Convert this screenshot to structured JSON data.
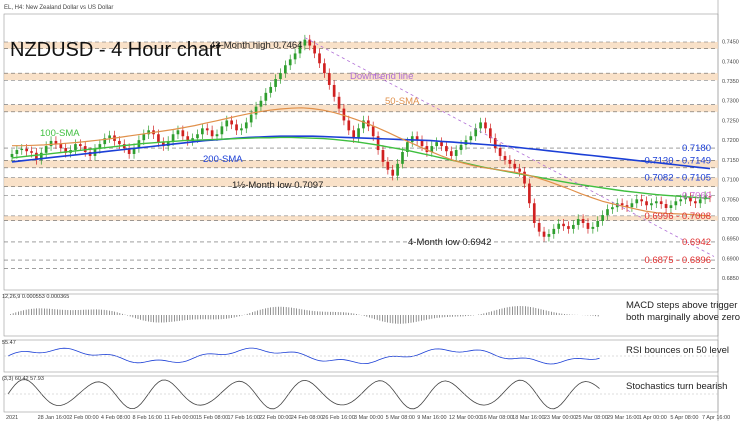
{
  "header": {
    "symbol_line": "EL, H4: New Zealand Dollar vs US Dollar"
  },
  "chart_data": [
    {
      "type": "line",
      "title": "NZDUSD - 4 Hour chart",
      "ylim": [
        0.682,
        0.752
      ],
      "x_labels": [
        "2021",
        "28 Jan 16:00",
        "2 Feb 00:00",
        "4 Feb 08:00",
        "8 Feb 16:00",
        "11 Feb 00:00",
        "15 Feb 08:00",
        "17 Feb 16:00",
        "22 Feb 00:00",
        "24 Feb 08:00",
        "26 Feb 16:00",
        "3 Mar 00:00",
        "5 Mar 08:00",
        "9 Mar 16:00",
        "12 Mar 00:00",
        "16 Mar 08:00",
        "18 Mar 16:00",
        "23 Mar 00:00",
        "25 Mar 08:00",
        "29 Mar 16:00",
        "1 Apr 00:00",
        "5 Apr 08:00",
        "7 Apr 16:00"
      ],
      "close": [
        0.7165,
        0.7175,
        0.7178,
        0.7172,
        0.7168,
        0.715,
        0.7168,
        0.7185,
        0.7198,
        0.719,
        0.718,
        0.7168,
        0.7175,
        0.719,
        0.7185,
        0.717,
        0.716,
        0.7178,
        0.719,
        0.7205,
        0.7212,
        0.7198,
        0.719,
        0.718,
        0.7165,
        0.718,
        0.72,
        0.7215,
        0.7225,
        0.7215,
        0.7195,
        0.7185,
        0.7198,
        0.7215,
        0.7225,
        0.721,
        0.7198,
        0.7205,
        0.7215,
        0.723,
        0.7225,
        0.721,
        0.7215,
        0.7235,
        0.725,
        0.724,
        0.7225,
        0.723,
        0.7245,
        0.7265,
        0.7285,
        0.73,
        0.732,
        0.7335,
        0.7355,
        0.737,
        0.739,
        0.7405,
        0.742,
        0.744,
        0.7455,
        0.744,
        0.742,
        0.7395,
        0.737,
        0.734,
        0.731,
        0.728,
        0.725,
        0.7225,
        0.7205,
        0.723,
        0.725,
        0.7235,
        0.721,
        0.7175,
        0.7145,
        0.7125,
        0.711,
        0.714,
        0.717,
        0.7195,
        0.721,
        0.72,
        0.7185,
        0.717,
        0.7185,
        0.7195,
        0.7185,
        0.7172,
        0.716,
        0.7175,
        0.7188,
        0.72,
        0.721,
        0.723,
        0.7245,
        0.723,
        0.7205,
        0.718,
        0.716,
        0.715,
        0.714,
        0.7128,
        0.712,
        0.709,
        0.704,
        0.699,
        0.6968,
        0.6955,
        0.6962,
        0.6975,
        0.6988,
        0.6982,
        0.6975,
        0.6985,
        0.7,
        0.699,
        0.6975,
        0.698,
        0.6995,
        0.701,
        0.7025,
        0.703,
        0.704,
        0.7035,
        0.703,
        0.704,
        0.705,
        0.7045,
        0.7035,
        0.704,
        0.7045,
        0.7038,
        0.7028,
        0.7035,
        0.7045,
        0.705,
        0.7055,
        0.7045,
        0.704,
        0.705,
        0.7058,
        0.7055
      ],
      "sma_50": [
        0.7186,
        0.7186,
        0.7187,
        0.7188,
        0.719,
        0.7192,
        0.7194,
        0.7197,
        0.72,
        0.7203,
        0.7207,
        0.7211,
        0.7215,
        0.7219,
        0.7223,
        0.7227,
        0.7232,
        0.7237,
        0.7243,
        0.7249,
        0.7255,
        0.7261,
        0.7267,
        0.7272,
        0.7276,
        0.7279,
        0.7281,
        0.7282,
        0.728,
        0.7276,
        0.727,
        0.7262,
        0.7253,
        0.7243,
        0.7232,
        0.722,
        0.7207,
        0.7195,
        0.7183,
        0.7171,
        0.716,
        0.715,
        0.7142,
        0.7135,
        0.713,
        0.7126,
        0.7122,
        0.7118,
        0.7112,
        0.7104,
        0.7095,
        0.7085,
        0.7075,
        0.7064,
        0.7054,
        0.7045,
        0.7038,
        0.7032,
        0.7026,
        0.702,
        0.7016,
        0.7014,
        0.7013,
        0.7012,
        0.701,
        0.7008
      ],
      "sma_100": [
        0.7155,
        0.7158,
        0.7161,
        0.7164,
        0.7167,
        0.717,
        0.7173,
        0.7176,
        0.7179,
        0.7182,
        0.7185,
        0.7188,
        0.7191,
        0.7193,
        0.7195,
        0.7197,
        0.7199,
        0.72,
        0.7201,
        0.7202,
        0.7203,
        0.7204,
        0.7205,
        0.7206,
        0.7206,
        0.7207,
        0.7207,
        0.7206,
        0.7205,
        0.7204,
        0.7202,
        0.7199,
        0.7196,
        0.7192,
        0.7188,
        0.7183,
        0.7178,
        0.7173,
        0.7167,
        0.7161,
        0.7155,
        0.7149,
        0.7143,
        0.7137,
        0.7131,
        0.7126,
        0.7121,
        0.7116,
        0.7111,
        0.7106,
        0.7101,
        0.7096,
        0.7091,
        0.7087,
        0.7083,
        0.7079,
        0.7075,
        0.7071,
        0.7068,
        0.7065,
        0.7062,
        0.706,
        0.7058,
        0.7056,
        0.7054,
        0.7052
      ],
      "sma_200": [
        0.7145,
        0.7148,
        0.7151,
        0.7154,
        0.7157,
        0.716,
        0.7163,
        0.7166,
        0.7169,
        0.7172,
        0.7175,
        0.7178,
        0.7181,
        0.7184,
        0.7187,
        0.719,
        0.7193,
        0.7196,
        0.7199,
        0.7201,
        0.7203,
        0.7205,
        0.7207,
        0.7208,
        0.7209,
        0.721,
        0.721,
        0.721,
        0.721,
        0.7209,
        0.7208,
        0.7207,
        0.7206,
        0.7205,
        0.7204,
        0.7203,
        0.7202,
        0.7201,
        0.72,
        0.7199,
        0.7197,
        0.7195,
        0.7193,
        0.7191,
        0.7189,
        0.7187,
        0.7185,
        0.7182,
        0.7179,
        0.7176,
        0.7173,
        0.717,
        0.7167,
        0.7164,
        0.7161,
        0.7158,
        0.7155,
        0.7152,
        0.7149,
        0.7146,
        0.7143,
        0.714,
        0.7137,
        0.7134,
        0.7131,
        0.7128
      ],
      "support_resistance": [
        {
          "label": "0.7180",
          "value": 0.718,
          "color": "#1b3fd6"
        },
        {
          "label": "0.7130 - 0.7149",
          "value": 0.7149,
          "color": "#1b3fd6"
        },
        {
          "label": "0.7082 - 0.7105",
          "value": 0.7105,
          "color": "#1b3fd6"
        },
        {
          "label": "0.7060",
          "value": 0.706,
          "color": "#d16ed6"
        },
        {
          "label": "0.6996 - 0.7008",
          "value": 0.7008,
          "color": "#e03030"
        },
        {
          "label": "0.6942",
          "value": 0.6942,
          "color": "#e03030"
        },
        {
          "label": "0.6875 - 0.6896",
          "value": 0.6896,
          "color": "#e03030"
        }
      ],
      "annotations": [
        {
          "text": "43-Month high 0.7464",
          "color": "#222222"
        },
        {
          "text": "Downtrend line",
          "color": "#b06fd6"
        },
        {
          "text": "50-SMA",
          "color": "#e0904a"
        },
        {
          "text": "100-SMA",
          "color": "#3fbf3f"
        },
        {
          "text": "200-SMA",
          "color": "#1b3fd6"
        },
        {
          "text": "1½-Month low 0.7097",
          "color": "#222222"
        },
        {
          "text": "4-Month low 0.6942",
          "color": "#222222"
        }
      ]
    },
    {
      "type": "line",
      "title": "MACD",
      "header": "12,26,9 0.000553 0.000365",
      "caption": "MACD steps above trigger both marginally above zero"
    },
    {
      "type": "line",
      "title": "RSI",
      "header": "55.47",
      "caption": "RSI bounces on 50 level"
    },
    {
      "type": "line",
      "title": "Stochastics",
      "header": "(3,3) 60.42 57.93",
      "caption": "Stochastics turn bearish"
    }
  ],
  "colors": {
    "zone_fill": "#f7d7b5",
    "sma_50": "#e0904a",
    "sma_100": "#3fbf3f",
    "sma_200": "#1b3fd6",
    "candle_up": "#2e9e2e",
    "candle_down": "#d02020",
    "price_label": "#444444"
  }
}
